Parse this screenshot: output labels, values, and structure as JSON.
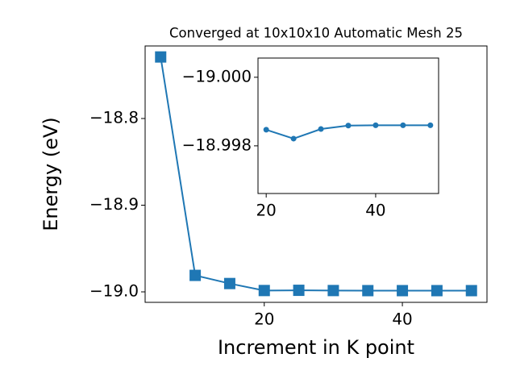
{
  "chart_data": [
    {
      "type": "line",
      "title": "Converged at 10x10x10 Automatic Mesh 25",
      "x_label": "Increment in K point",
      "y_label": "Energy (eV)",
      "x": [
        5,
        10,
        15,
        20,
        25,
        30,
        35,
        40,
        45,
        50
      ],
      "series": [
        {
          "color": "#1f77b4",
          "marker": "square",
          "values": [
            -18.729,
            -18.981,
            -18.9904,
            -18.99847,
            -18.99821,
            -18.99849,
            -18.99859,
            -18.9986,
            -18.9986,
            -18.9986
          ]
        }
      ],
      "xlim": [
        2.75,
        52.25
      ],
      "xticks": [
        20,
        40
      ],
      "ylim": [
        -19.0121,
        -18.7163
      ],
      "yticks": [
        {
          "value": -19.0,
          "label": "−19.0"
        },
        {
          "value": -18.9,
          "label": "−18.9"
        },
        {
          "value": -18.8,
          "label": "−18.8"
        }
      ]
    },
    {
      "type": "line",
      "x": [
        20,
        25,
        30,
        35,
        40,
        45,
        50
      ],
      "series": [
        {
          "color": "#1f77b4",
          "marker": "circle",
          "values": [
            -18.99847,
            -18.99821,
            -18.99849,
            -18.99859,
            -18.9986,
            -18.9986,
            -18.9986
          ]
        }
      ],
      "xlim": [
        18.5,
        51.5
      ],
      "xticks": [
        20,
        40
      ],
      "ylim": [
        -18.99661,
        -19.00056
      ],
      "yticks": [
        {
          "value": -19.0,
          "label": "−19.000"
        },
        {
          "value": -18.998,
          "label": "−18.998"
        }
      ]
    }
  ]
}
